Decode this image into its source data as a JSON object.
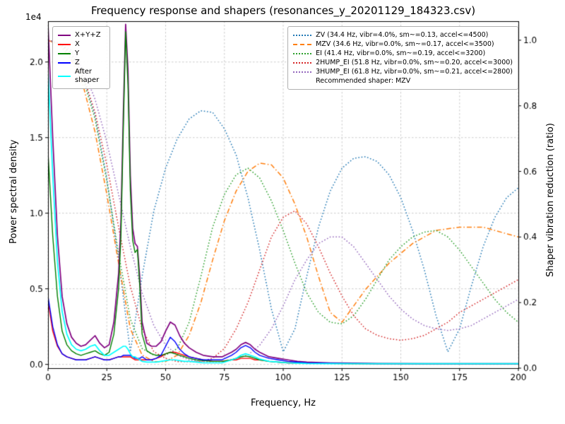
{
  "chart_data": {
    "type": "line",
    "title": "Frequency response and shapers (resonances_y_20201129_184323.csv)",
    "xlabel": "Frequency, Hz",
    "ylabel_left": "Power spectral density",
    "ylabel_right": "Shaper vibration reduction (ratio)",
    "y_left_offset_text": "1e4",
    "xlim": [
      0,
      200
    ],
    "ylim_left_1e4": [
      -0.025,
      2.27
    ],
    "ylim_right": [
      0,
      1.058
    ],
    "grid": true,
    "grid_color": "#c6c6c6",
    "x_tick_values": [
      0,
      25,
      50,
      75,
      100,
      125,
      150,
      175,
      200
    ],
    "x_tick_labels": [
      "0",
      "25",
      "50",
      "75",
      "100",
      "125",
      "150",
      "175",
      "200"
    ],
    "y_left_tick_values": [
      0,
      0.5,
      1.0,
      1.5,
      2.0
    ],
    "y_left_tick_labels": [
      "0.0",
      "0.5",
      "1.0",
      "1.5",
      "2.0"
    ],
    "y_right_tick_values": [
      0,
      0.2,
      0.4,
      0.6,
      0.8,
      1.0
    ],
    "y_right_tick_labels": [
      "0.0",
      "0.2",
      "0.4",
      "0.6",
      "0.8",
      "1.0"
    ],
    "psd_x": [
      0,
      2,
      4,
      6,
      8,
      10,
      12,
      14,
      16,
      18,
      20,
      22,
      24,
      26,
      28,
      30,
      31,
      32,
      33,
      34,
      35,
      36,
      37,
      38,
      39,
      40,
      42,
      44,
      46,
      48,
      50,
      52,
      54,
      56,
      58,
      60,
      63,
      66,
      70,
      74,
      78,
      80,
      82,
      84,
      86,
      88,
      90,
      94,
      98,
      102,
      106,
      110,
      120,
      130,
      140,
      160,
      180,
      200
    ],
    "psd_series": [
      {
        "name": "X+Y+Z",
        "color": "#800080",
        "style": "solid",
        "y_1e4": [
          2.25,
          1.5,
          0.85,
          0.45,
          0.27,
          0.18,
          0.14,
          0.12,
          0.13,
          0.16,
          0.19,
          0.14,
          0.11,
          0.13,
          0.28,
          0.6,
          0.95,
          1.65,
          2.25,
          1.95,
          1.25,
          0.9,
          0.8,
          0.78,
          0.58,
          0.28,
          0.14,
          0.12,
          0.12,
          0.15,
          0.22,
          0.28,
          0.26,
          0.19,
          0.14,
          0.11,
          0.08,
          0.06,
          0.05,
          0.05,
          0.08,
          0.1,
          0.13,
          0.145,
          0.13,
          0.1,
          0.08,
          0.05,
          0.04,
          0.03,
          0.02,
          0.015,
          0.01,
          0.008,
          0.006,
          0.005,
          0.005,
          0.005
        ]
      },
      {
        "name": "X",
        "color": "#ff0000",
        "style": "solid",
        "y_1e4": [
          0.42,
          0.22,
          0.12,
          0.07,
          0.05,
          0.04,
          0.03,
          0.03,
          0.03,
          0.04,
          0.05,
          0.04,
          0.03,
          0.03,
          0.04,
          0.05,
          0.05,
          0.05,
          0.05,
          0.05,
          0.05,
          0.04,
          0.03,
          0.03,
          0.03,
          0.03,
          0.03,
          0.03,
          0.04,
          0.05,
          0.07,
          0.08,
          0.08,
          0.07,
          0.06,
          0.05,
          0.04,
          0.03,
          0.02,
          0.02,
          0.03,
          0.03,
          0.04,
          0.04,
          0.04,
          0.03,
          0.03,
          0.02,
          0.015,
          0.01,
          0.01,
          0.008,
          0.006,
          0.005,
          0.005,
          0.005,
          0.005,
          0.005
        ]
      },
      {
        "name": "Y",
        "color": "#008000",
        "style": "solid",
        "y_1e4": [
          1.4,
          0.85,
          0.45,
          0.22,
          0.13,
          0.09,
          0.07,
          0.06,
          0.07,
          0.08,
          0.09,
          0.07,
          0.06,
          0.08,
          0.2,
          0.5,
          0.85,
          1.55,
          2.2,
          1.85,
          1.15,
          0.82,
          0.74,
          0.76,
          0.52,
          0.2,
          0.09,
          0.07,
          0.06,
          0.06,
          0.07,
          0.08,
          0.07,
          0.06,
          0.05,
          0.04,
          0.03,
          0.025,
          0.02,
          0.02,
          0.03,
          0.04,
          0.05,
          0.055,
          0.05,
          0.04,
          0.03,
          0.02,
          0.015,
          0.01,
          0.01,
          0.008,
          0.006,
          0.005,
          0.005,
          0.005,
          0.005,
          0.005
        ]
      },
      {
        "name": "Z",
        "color": "#0000ff",
        "style": "solid",
        "y_1e4": [
          0.45,
          0.25,
          0.13,
          0.07,
          0.05,
          0.04,
          0.03,
          0.03,
          0.03,
          0.04,
          0.05,
          0.04,
          0.03,
          0.03,
          0.04,
          0.05,
          0.05,
          0.06,
          0.06,
          0.06,
          0.06,
          0.05,
          0.04,
          0.04,
          0.04,
          0.05,
          0.03,
          0.03,
          0.04,
          0.06,
          0.12,
          0.18,
          0.15,
          0.1,
          0.07,
          0.05,
          0.04,
          0.03,
          0.03,
          0.03,
          0.06,
          0.08,
          0.11,
          0.125,
          0.11,
          0.08,
          0.06,
          0.04,
          0.03,
          0.02,
          0.015,
          0.01,
          0.008,
          0.006,
          0.005,
          0.005,
          0.005,
          0.005
        ]
      },
      {
        "name": "After shaper",
        "color": "#00ffff",
        "style": "solid",
        "y_1e4": [
          1.95,
          1.25,
          0.68,
          0.35,
          0.2,
          0.13,
          0.1,
          0.09,
          0.1,
          0.12,
          0.13,
          0.09,
          0.06,
          0.06,
          0.08,
          0.1,
          0.11,
          0.12,
          0.12,
          0.1,
          0.07,
          0.05,
          0.05,
          0.04,
          0.03,
          0.02,
          0.015,
          0.015,
          0.015,
          0.02,
          0.025,
          0.03,
          0.03,
          0.025,
          0.02,
          0.02,
          0.015,
          0.01,
          0.01,
          0.01,
          0.03,
          0.04,
          0.06,
          0.07,
          0.06,
          0.05,
          0.035,
          0.02,
          0.015,
          0.01,
          0.008,
          0.006,
          0.005,
          0.005,
          0.005,
          0.005,
          0.005,
          0.005
        ]
      }
    ],
    "shaper_x": [
      0,
      5,
      10,
      15,
      20,
      25,
      30,
      35,
      40,
      45,
      50,
      55,
      60,
      65,
      70,
      75,
      80,
      85,
      90,
      95,
      100,
      105,
      110,
      115,
      120,
      125,
      130,
      135,
      140,
      145,
      150,
      155,
      160,
      165,
      170,
      175,
      180,
      185,
      190,
      195,
      200
    ],
    "shaper_series": [
      {
        "name": "ZV",
        "label": "ZV (34.4 Hz, vibr=4.0%, sm~=0.13, accel<=4500)",
        "color": "#1f77b4",
        "style": "dotted",
        "y": [
          1.0,
          0.99,
          0.96,
          0.89,
          0.77,
          0.58,
          0.33,
          0.05,
          0.28,
          0.48,
          0.61,
          0.7,
          0.76,
          0.785,
          0.78,
          0.73,
          0.65,
          0.52,
          0.36,
          0.18,
          0.05,
          0.12,
          0.28,
          0.43,
          0.54,
          0.61,
          0.64,
          0.645,
          0.63,
          0.59,
          0.52,
          0.42,
          0.3,
          0.16,
          0.05,
          0.12,
          0.25,
          0.37,
          0.46,
          0.52,
          0.55
        ]
      },
      {
        "name": "MZV",
        "label": "MZV (34.6 Hz, vibr=0.0%, sm~=0.17, accel<=3500)",
        "color": "#ff7f0e",
        "style": "dashdot",
        "y": [
          1.0,
          0.985,
          0.94,
          0.86,
          0.72,
          0.53,
          0.32,
          0.12,
          0.04,
          0.02,
          0.02,
          0.04,
          0.1,
          0.2,
          0.33,
          0.45,
          0.54,
          0.6,
          0.625,
          0.62,
          0.58,
          0.5,
          0.4,
          0.28,
          0.17,
          0.14,
          0.19,
          0.24,
          0.28,
          0.32,
          0.35,
          0.38,
          0.4,
          0.42,
          0.425,
          0.43,
          0.43,
          0.43,
          0.42,
          0.41,
          0.4
        ]
      },
      {
        "name": "EI",
        "label": "EI (41.4 Hz, vibr=0.0%, sm~=0.19, accel<=3200)",
        "color": "#2ca02c",
        "style": "dotted",
        "y": [
          1.0,
          0.99,
          0.95,
          0.88,
          0.76,
          0.57,
          0.35,
          0.15,
          0.06,
          0.04,
          0.04,
          0.06,
          0.14,
          0.28,
          0.43,
          0.53,
          0.59,
          0.61,
          0.58,
          0.51,
          0.42,
          0.32,
          0.23,
          0.17,
          0.14,
          0.135,
          0.16,
          0.21,
          0.27,
          0.33,
          0.37,
          0.4,
          0.415,
          0.42,
          0.4,
          0.36,
          0.31,
          0.26,
          0.21,
          0.17,
          0.14
        ]
      },
      {
        "name": "2HUMP_EI",
        "label": "2HUMP_EI (51.8 Hz, vibr=0.0%, sm~=0.20, accel<=3000)",
        "color": "#d62728",
        "style": "dotted",
        "y": [
          1.0,
          0.99,
          0.96,
          0.89,
          0.78,
          0.62,
          0.43,
          0.25,
          0.12,
          0.05,
          0.03,
          0.02,
          0.02,
          0.02,
          0.03,
          0.06,
          0.12,
          0.2,
          0.3,
          0.4,
          0.46,
          0.48,
          0.44,
          0.37,
          0.29,
          0.22,
          0.16,
          0.12,
          0.1,
          0.09,
          0.085,
          0.09,
          0.1,
          0.12,
          0.14,
          0.17,
          0.19,
          0.21,
          0.23,
          0.25,
          0.27
        ]
      },
      {
        "name": "3HUMP_EI",
        "label": "3HUMP_EI (61.8 Hz, vibr=0.0%, sm~=0.21, accel<=2800)",
        "color": "#9467bd",
        "style": "dotted",
        "y": [
          1.0,
          0.99,
          0.97,
          0.91,
          0.82,
          0.69,
          0.53,
          0.37,
          0.23,
          0.13,
          0.07,
          0.04,
          0.025,
          0.02,
          0.02,
          0.02,
          0.03,
          0.04,
          0.07,
          0.12,
          0.19,
          0.27,
          0.33,
          0.38,
          0.4,
          0.4,
          0.37,
          0.32,
          0.27,
          0.22,
          0.18,
          0.15,
          0.13,
          0.12,
          0.115,
          0.12,
          0.13,
          0.15,
          0.17,
          0.19,
          0.21
        ]
      }
    ],
    "recommendation": "Recommended shaper: MZV"
  }
}
